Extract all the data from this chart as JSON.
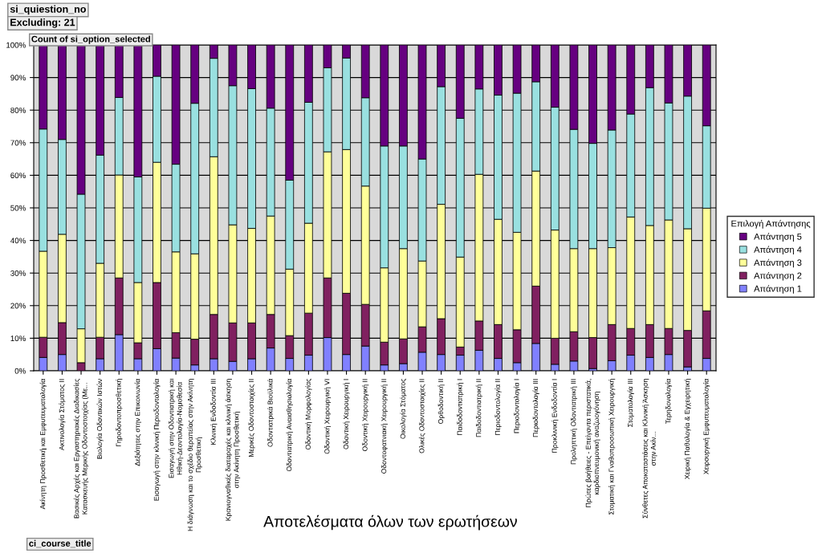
{
  "chart_data": {
    "type": "bar",
    "stacked": true,
    "title": "Αποτελέσματα όλων των ερωτήσεων",
    "legend_title": "Επιλογή Απάντησης",
    "legend": "right",
    "grid": "y",
    "annotations": [
      "si_quiestion_no",
      "Excluding: 21",
      "Count of si_option_selected",
      "ci_course_title"
    ],
    "categories": [
      "Ακίνητη Προσθετική και Εμφυτευματολογία",
      "Ακτινολογία Στόματος ΙΙ",
      "Βασικές Αρχές και Εργαστηριακές Διαδικασίες\nΚατασκευής Μερικής Οδοντοστοιχίας (Με...",
      "Βιολογία Οδοντικών Ιστών",
      "Γηροδοντοπροσθετική",
      "Δεξιότητες στην Επικοινωνία",
      "Εισαγωγή στην κλινική Περιοδοντολογία",
      "Εισαγωγή στην Οδοντιατρική και\nΗθική-Δεοντολογία-Νομοθεσία",
      "Η διάγνωση και το σχέδιο θεραπείας στην Ακίνητη\nΠροσθετική",
      "Κλινική Ενδοδοντία ΙΙΙ",
      "Κρανιογναθικές διαταραχές και κλινική άσκηση\nστην Ακίνητη Προσθετική",
      "Μερικές Οδοντοστοιχίες ΙΙ",
      "Οδοντιατρικά Βιοϋλικά",
      "Οδοντιατρική Αναισθησιολογία",
      "Οδοντική Μορφολογίας",
      "Οδοντική Χειρουργική VI",
      "Οδοντική Χειρουργική Ι",
      "Οδοντική Χειρουργική ΙΙ",
      "Οδοντοφατνιακή Χειρουργική ΙΙ",
      "Οικολογία Στόματος",
      "Ολικές Οδοντοστοιχίες ΙΙ",
      "Ορθοδοντική ΙΙ",
      "Παιδοδοντιατρική Ι",
      "Παιδοδοντιατρική ΙΙ",
      "Περιοδοντολογία ΙΙ",
      "Περιοδοντολογία Ι",
      "Περιοδοντολογία ΙΙΙ",
      "Προκλινική Ενδοδοντία Ι",
      "Προληπτική Οδοντιατρική ΙΙΙ",
      "Πρώτες βοήθειες - Επείγοντα περιστατικά,\nκαρδιοπνευμονική αναζωογόνηση",
      "Στοματική και Γναθοπροσωπική Χειρουργική",
      "Στοματολογία ΙΙΙ",
      "Σύνθετες Αποκαταστάσεις και Κλινική Άσκηση\nστην Ακίν...",
      "Τερηδονολογία",
      "Χειρική Παθολογία & Εγχειρητική",
      "Χειρουργική Εμφυτευματολογία"
    ],
    "ylim": [
      0,
      100
    ],
    "yticks": [
      {
        "value": 0,
        "label": "0%"
      },
      {
        "value": 10,
        "label": "10%"
      },
      {
        "value": 20,
        "label": "20%"
      },
      {
        "value": 30,
        "label": "30%"
      },
      {
        "value": 40,
        "label": "40%"
      },
      {
        "value": 50,
        "label": "50%"
      },
      {
        "value": 60,
        "label": "60%"
      },
      {
        "value": 70,
        "label": "70%"
      },
      {
        "value": 80,
        "label": "80%"
      },
      {
        "value": 90,
        "label": "90%"
      },
      {
        "value": 100,
        "label": "100%"
      }
    ],
    "series": [
      {
        "name": "Απάντηση 1",
        "color": "#8080ff",
        "values": [
          4.1,
          5.0,
          0,
          3.7,
          11.1,
          3.7,
          6.8,
          3.9,
          1.8,
          3.7,
          2.9,
          3.7,
          7.0,
          3.8,
          4.8,
          10.2,
          5.0,
          7.6,
          1.8,
          2.2,
          5.7,
          5.0,
          4.8,
          6.3,
          3.8,
          2.5,
          8.4,
          2.0,
          3.0,
          0.7,
          3.1,
          4.8,
          4.1,
          5.0,
          1.2,
          3.8
        ]
      },
      {
        "name": "Απάντηση 2",
        "color": "#802060",
        "values": [
          6.2,
          9.8,
          2.5,
          6.6,
          17.4,
          4.9,
          20.3,
          7.8,
          7.9,
          13.6,
          11.8,
          11.0,
          10.3,
          7.0,
          12.9,
          18.3,
          18.8,
          12.8,
          7.0,
          7.6,
          7.8,
          11.0,
          2.5,
          9.0,
          10.4,
          10.1,
          17.6,
          8.0,
          9.0,
          9.5,
          11.1,
          8.2,
          10.1,
          8.0,
          11.2,
          14.6
        ]
      },
      {
        "name": "Απάντηση 3",
        "color": "#ffff99",
        "values": [
          26.4,
          27.1,
          10.4,
          22.7,
          31.6,
          18.5,
          36.9,
          24.8,
          26.2,
          48.4,
          30.1,
          29.0,
          30.2,
          20.4,
          27.6,
          38.7,
          44.1,
          36.3,
          22.8,
          27.7,
          20.2,
          35.1,
          27.6,
          45.0,
          32.3,
          29.9,
          35.3,
          33.2,
          25.5,
          27.3,
          23.6,
          34.2,
          30.4,
          33.3,
          31.2,
          31.5
        ]
      },
      {
        "name": "Απάντηση 4",
        "color": "#99e0e0",
        "values": [
          37.5,
          29.1,
          41.3,
          33.2,
          23.8,
          32.4,
          26.4,
          26.9,
          46.2,
          30.2,
          42.7,
          42.9,
          33.1,
          27.3,
          37.1,
          25.8,
          28.1,
          27.1,
          37.4,
          31.5,
          31.3,
          36.1,
          42.6,
          26.2,
          38.1,
          42.7,
          27.4,
          37.7,
          36.6,
          32.3,
          36.1,
          31.6,
          42.3,
          35.9,
          40.7,
          25.3
        ]
      },
      {
        "name": "Απάντηση 5",
        "color": "#660080",
        "values": [
          25.8,
          29.0,
          45.8,
          33.8,
          16.1,
          40.5,
          9.6,
          36.6,
          17.9,
          4.1,
          12.5,
          13.4,
          19.4,
          41.5,
          17.6,
          7.0,
          4.0,
          16.2,
          31.0,
          31.0,
          35.0,
          12.8,
          22.5,
          13.5,
          15.4,
          14.8,
          11.3,
          19.1,
          25.9,
          30.2,
          26.1,
          21.2,
          13.1,
          17.8,
          15.7,
          24.8
        ]
      }
    ]
  }
}
